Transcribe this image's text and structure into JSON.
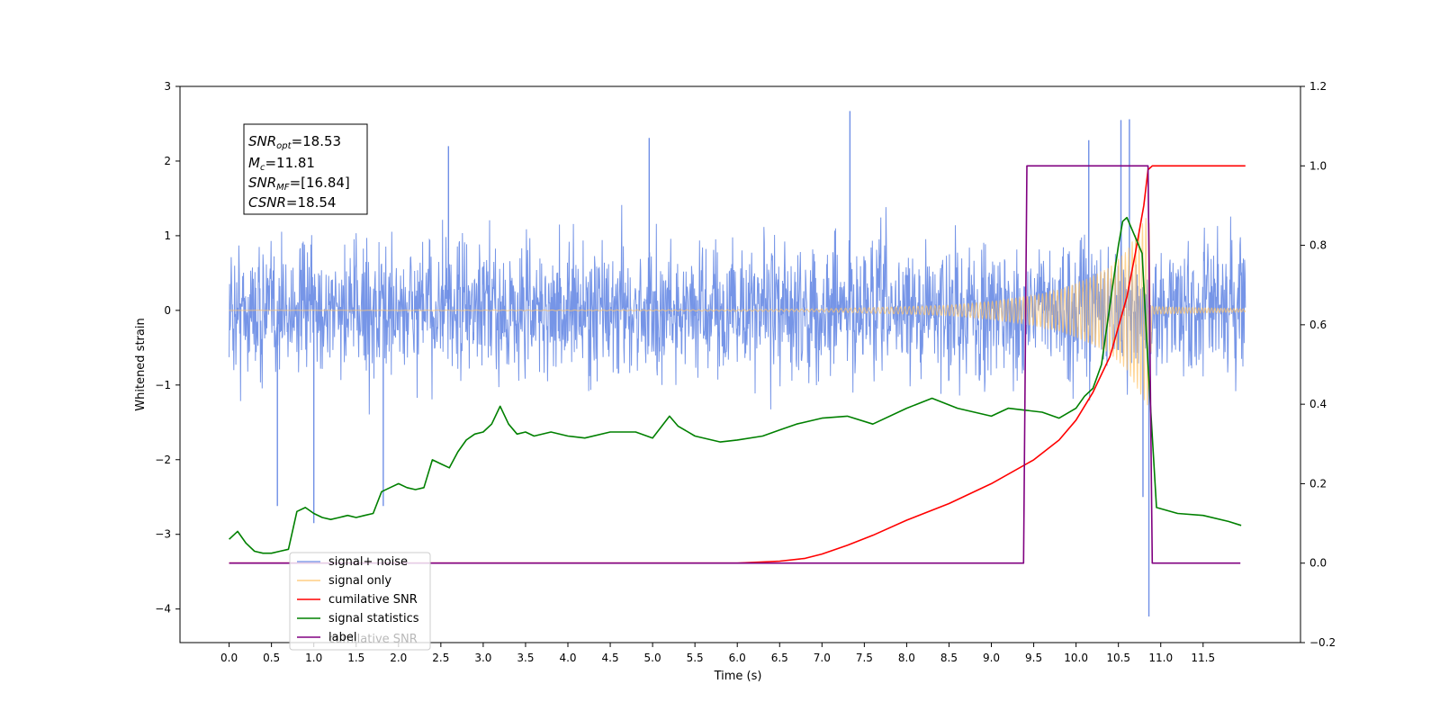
{
  "chart_data": {
    "type": "line",
    "xlabel": "Time (s)",
    "ylabel": "Whitened strain",
    "xlim": [
      -0.58,
      12.65
    ],
    "ylim": [
      -4.45,
      3.0
    ],
    "y2lim": [
      -0.2,
      1.2
    ],
    "x_ticks": [
      0.0,
      0.5,
      1.0,
      1.5,
      2.0,
      2.5,
      3.0,
      3.5,
      4.0,
      4.5,
      5.0,
      5.5,
      6.0,
      6.5,
      7.0,
      7.5,
      8.0,
      8.5,
      9.0,
      9.5,
      10.0,
      10.5,
      11.0,
      11.5
    ],
    "x_tick_labels": [
      "0.0",
      "0.5",
      "1.0",
      "1.5",
      "2.0",
      "2.5",
      "3.0",
      "3.5",
      "4.0",
      "4.5",
      "5.0",
      "5.5",
      "6.0",
      "6.5",
      "7.0",
      "7.5",
      "8.0",
      "8.5",
      "9.0",
      "9.5",
      "10.0",
      "10.5",
      "11.0",
      "11.5"
    ],
    "y_ticks": [
      3,
      2,
      1,
      0,
      -1,
      -2,
      -3,
      -4
    ],
    "y_tick_labels": [
      "3",
      "2",
      "1",
      "0",
      "−1",
      "−2",
      "−3",
      "−4"
    ],
    "y2_ticks": [
      1.2,
      1.0,
      0.8,
      0.6,
      0.4,
      0.2,
      0.0,
      -0.2
    ],
    "y2_tick_labels": [
      "1.2",
      "1.0",
      "0.8",
      "0.6",
      "0.4",
      "0.2",
      "0.0",
      "−0.2"
    ],
    "grid": false,
    "legend_position": "lower-left",
    "legend": [
      {
        "label": "signal+ noise",
        "color": "#6f8fe6"
      },
      {
        "label": "signal only",
        "color": "#ffc46b"
      },
      {
        "label": "cumilative SNR",
        "color": "#ff0000"
      },
      {
        "label": "signal statistics",
        "color": "#008000"
      },
      {
        "label": "label",
        "color": "#800080"
      }
    ],
    "legend_underlying_text": "cumilative SNR",
    "annotation": {
      "lines": [
        {
          "base": "SNR",
          "sub": "opt",
          "value": "=18.53"
        },
        {
          "base": "M",
          "sub": "c",
          "value": "=11.81"
        },
        {
          "base": "SNR",
          "sub": "MF",
          "value": "=[16.84]"
        },
        {
          "base": "CSNR",
          "sub": "",
          "value": "=18.54"
        }
      ]
    },
    "series": [
      {
        "name": "signal+ noise",
        "axis": "left",
        "color": "#6f8fe6",
        "x_range": [
          0.0,
          12.0
        ],
        "typical_envelope": [
          -1.5,
          1.5
        ],
        "peaks": [
          {
            "x": 7.33,
            "y": 2.67
          },
          {
            "x": 2.59,
            "y": 2.2
          },
          {
            "x": 4.96,
            "y": 2.31
          },
          {
            "x": 10.15,
            "y": 2.28
          },
          {
            "x": 10.53,
            "y": 2.55
          },
          {
            "x": 10.63,
            "y": 2.56
          },
          {
            "x": 10.86,
            "y": -4.1
          },
          {
            "x": 1.0,
            "y": -2.85
          },
          {
            "x": 0.57,
            "y": -2.62
          },
          {
            "x": 1.82,
            "y": -2.62
          },
          {
            "x": 10.79,
            "y": -2.5
          }
        ]
      },
      {
        "name": "signal only",
        "axis": "left",
        "color": "#ffc46b",
        "x": [
          0.0,
          4.0,
          6.0,
          7.0,
          8.0,
          8.5,
          9.0,
          9.5,
          9.8,
          10.0,
          10.2,
          10.4,
          10.6,
          10.7,
          10.8,
          10.86,
          10.9,
          12.0
        ],
        "amplitude": [
          0.0,
          0.005,
          0.01,
          0.02,
          0.05,
          0.07,
          0.12,
          0.2,
          0.28,
          0.36,
          0.46,
          0.58,
          0.8,
          1.0,
          1.2,
          1.3,
          0.05,
          0.02
        ]
      },
      {
        "name": "cumilative SNR",
        "axis": "right",
        "color": "#ff0000",
        "x": [
          0.0,
          5.5,
          6.0,
          6.5,
          6.8,
          7.0,
          7.3,
          7.6,
          8.0,
          8.5,
          9.0,
          9.5,
          9.8,
          10.0,
          10.2,
          10.4,
          10.6,
          10.7,
          10.8,
          10.85,
          10.9,
          12.0
        ],
        "values": [
          0.0,
          0.0,
          0.0,
          0.005,
          0.012,
          0.023,
          0.045,
          0.07,
          0.108,
          0.15,
          0.2,
          0.26,
          0.31,
          0.36,
          0.43,
          0.52,
          0.67,
          0.78,
          0.9,
          0.99,
          1.0,
          1.0
        ]
      },
      {
        "name": "signal statistics",
        "axis": "right",
        "color": "#008000",
        "x": [
          0.0,
          0.1,
          0.2,
          0.3,
          0.4,
          0.5,
          0.6,
          0.7,
          0.8,
          0.9,
          1.0,
          1.1,
          1.2,
          1.3,
          1.4,
          1.5,
          1.6,
          1.7,
          1.8,
          1.9,
          2.0,
          2.1,
          2.2,
          2.3,
          2.4,
          2.5,
          2.6,
          2.7,
          2.8,
          2.9,
          3.0,
          3.1,
          3.2,
          3.3,
          3.4,
          3.5,
          3.6,
          3.8,
          4.0,
          4.2,
          4.5,
          4.8,
          5.0,
          5.2,
          5.3,
          5.5,
          5.8,
          6.0,
          6.3,
          6.5,
          6.7,
          7.0,
          7.3,
          7.6,
          8.0,
          8.3,
          8.6,
          9.0,
          9.2,
          9.4,
          9.6,
          9.8,
          10.0,
          10.1,
          10.2,
          10.3,
          10.4,
          10.5,
          10.55,
          10.6,
          10.7,
          10.78,
          10.85,
          10.95,
          11.2,
          11.5,
          11.8,
          11.95
        ],
        "values": [
          0.06,
          0.08,
          0.05,
          0.03,
          0.025,
          0.025,
          0.03,
          0.035,
          0.13,
          0.14,
          0.125,
          0.115,
          0.11,
          0.115,
          0.12,
          0.115,
          0.12,
          0.125,
          0.18,
          0.19,
          0.2,
          0.19,
          0.185,
          0.19,
          0.26,
          0.25,
          0.24,
          0.28,
          0.31,
          0.325,
          0.33,
          0.35,
          0.395,
          0.35,
          0.325,
          0.33,
          0.32,
          0.33,
          0.32,
          0.315,
          0.33,
          0.33,
          0.315,
          0.37,
          0.345,
          0.32,
          0.305,
          0.31,
          0.32,
          0.335,
          0.35,
          0.365,
          0.37,
          0.35,
          0.39,
          0.415,
          0.39,
          0.37,
          0.39,
          0.385,
          0.38,
          0.365,
          0.39,
          0.42,
          0.44,
          0.5,
          0.65,
          0.8,
          0.86,
          0.87,
          0.82,
          0.78,
          0.5,
          0.14,
          0.125,
          0.12,
          0.105,
          0.095
        ]
      },
      {
        "name": "label",
        "axis": "right",
        "color": "#800080",
        "x": [
          0.0,
          9.38,
          9.42,
          10.85,
          10.9,
          11.94
        ],
        "values": [
          0.0,
          0.0,
          1.0,
          1.0,
          0.0,
          0.0
        ]
      }
    ]
  }
}
